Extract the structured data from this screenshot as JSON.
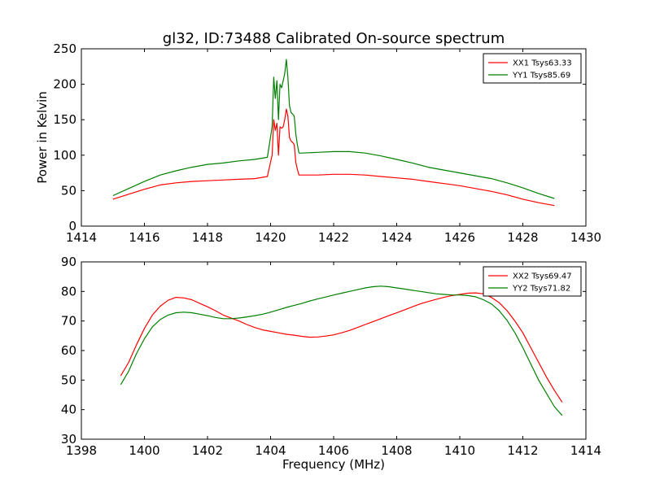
{
  "chart_data": [
    {
      "type": "line",
      "title": "gl32, ID:73488 Calibrated On-source spectrum",
      "xlabel": "",
      "ylabel": "Power in Kelvin",
      "xlim": [
        1414,
        1430
      ],
      "ylim": [
        0,
        250
      ],
      "xticks": [
        1414,
        1416,
        1418,
        1420,
        1422,
        1424,
        1426,
        1428,
        1430
      ],
      "yticks": [
        0,
        50,
        100,
        150,
        200,
        250
      ],
      "legend_position": "top-right",
      "series": [
        {
          "name": "XX1 Tsys63.33",
          "color": "#ff0000",
          "x": [
            1415.0,
            1415.5,
            1416.0,
            1416.5,
            1417.0,
            1417.5,
            1418.0,
            1418.5,
            1419.0,
            1419.5,
            1419.9,
            1420.05,
            1420.1,
            1420.15,
            1420.2,
            1420.25,
            1420.3,
            1420.35,
            1420.4,
            1420.45,
            1420.5,
            1420.55,
            1420.6,
            1420.65,
            1420.7,
            1420.75,
            1420.8,
            1420.85,
            1420.9,
            1421.0,
            1421.5,
            1422.0,
            1422.5,
            1423.0,
            1423.5,
            1424.0,
            1424.5,
            1425.0,
            1425.5,
            1426.0,
            1426.5,
            1427.0,
            1427.5,
            1428.0,
            1428.5,
            1429.0
          ],
          "y": [
            38,
            45,
            52,
            58,
            61,
            63,
            64,
            65,
            66,
            67,
            70,
            100,
            150,
            135,
            145,
            100,
            140,
            138,
            140,
            150,
            165,
            155,
            125,
            120,
            118,
            115,
            90,
            80,
            72,
            72,
            72,
            73,
            73,
            72,
            70,
            68,
            66,
            63,
            60,
            57,
            53,
            49,
            44,
            38,
            33,
            29
          ]
        },
        {
          "name": "YY1 Tsys85.69",
          "color": "#008000",
          "x": [
            1415.0,
            1415.5,
            1416.0,
            1416.5,
            1417.0,
            1417.5,
            1418.0,
            1418.5,
            1419.0,
            1419.5,
            1419.9,
            1420.05,
            1420.1,
            1420.15,
            1420.2,
            1420.25,
            1420.3,
            1420.35,
            1420.4,
            1420.45,
            1420.5,
            1420.55,
            1420.6,
            1420.65,
            1420.7,
            1420.75,
            1420.8,
            1420.85,
            1420.9,
            1421.0,
            1421.5,
            1422.0,
            1422.5,
            1423.0,
            1423.5,
            1424.0,
            1424.5,
            1425.0,
            1425.5,
            1426.0,
            1426.5,
            1427.0,
            1427.5,
            1428.0,
            1428.5,
            1429.0
          ],
          "y": [
            43,
            53,
            63,
            72,
            78,
            83,
            87,
            89,
            92,
            94,
            97,
            140,
            210,
            180,
            205,
            150,
            200,
            195,
            205,
            215,
            235,
            210,
            170,
            160,
            158,
            155,
            130,
            115,
            103,
            103,
            104,
            105,
            105,
            103,
            99,
            94,
            89,
            83,
            79,
            75,
            71,
            67,
            61,
            54,
            46,
            39
          ]
        }
      ]
    },
    {
      "type": "line",
      "title": "",
      "xlabel": "Frequency (MHz)",
      "ylabel": "",
      "xlim": [
        1398,
        1414
      ],
      "ylim": [
        30,
        90
      ],
      "xticks": [
        1398,
        1400,
        1402,
        1404,
        1406,
        1408,
        1410,
        1412,
        1414
      ],
      "yticks": [
        30,
        40,
        50,
        60,
        70,
        80,
        90
      ],
      "legend_position": "top-right",
      "series": [
        {
          "name": "XX2 Tsys69.47",
          "color": "#ff0000",
          "x": [
            1399.25,
            1399.5,
            1399.75,
            1400.0,
            1400.25,
            1400.5,
            1400.75,
            1401.0,
            1401.25,
            1401.5,
            1401.75,
            1402.0,
            1402.25,
            1402.5,
            1402.75,
            1403.0,
            1403.25,
            1403.5,
            1403.75,
            1404.0,
            1404.25,
            1404.5,
            1404.75,
            1405.0,
            1405.25,
            1405.5,
            1405.75,
            1406.0,
            1406.25,
            1406.5,
            1406.75,
            1407.0,
            1407.25,
            1407.5,
            1407.75,
            1408.0,
            1408.25,
            1408.5,
            1408.75,
            1409.0,
            1409.25,
            1409.5,
            1409.75,
            1410.0,
            1410.25,
            1410.5,
            1410.75,
            1411.0,
            1411.25,
            1411.5,
            1411.75,
            1412.0,
            1412.25,
            1412.5,
            1412.75,
            1413.0,
            1413.25
          ],
          "y": [
            51.5,
            56,
            62,
            67.5,
            72,
            75,
            77,
            78,
            77.8,
            77.2,
            76,
            74.8,
            73.5,
            72,
            71,
            70,
            68.8,
            67.8,
            67,
            66.5,
            66,
            65.5,
            65.2,
            64.8,
            64.5,
            64.6,
            64.9,
            65.3,
            66,
            66.8,
            67.8,
            68.8,
            69.8,
            70.8,
            71.8,
            72.8,
            73.8,
            74.8,
            75.8,
            76.6,
            77.3,
            78,
            78.6,
            79,
            79.4,
            79.5,
            79.2,
            78,
            76.2,
            73.5,
            70,
            66,
            61,
            56,
            51,
            46.5,
            42.5
          ]
        },
        {
          "name": "YY2 Tsys71.82",
          "color": "#008000",
          "x": [
            1399.25,
            1399.5,
            1399.75,
            1400.0,
            1400.25,
            1400.5,
            1400.75,
            1401.0,
            1401.25,
            1401.5,
            1401.75,
            1402.0,
            1402.25,
            1402.5,
            1402.75,
            1403.0,
            1403.25,
            1403.5,
            1403.75,
            1404.0,
            1404.25,
            1404.5,
            1404.75,
            1405.0,
            1405.25,
            1405.5,
            1405.75,
            1406.0,
            1406.25,
            1406.5,
            1406.75,
            1407.0,
            1407.25,
            1407.5,
            1407.75,
            1408.0,
            1408.25,
            1408.5,
            1408.75,
            1409.0,
            1409.25,
            1409.5,
            1409.75,
            1410.0,
            1410.25,
            1410.5,
            1410.75,
            1411.0,
            1411.25,
            1411.5,
            1411.75,
            1412.0,
            1412.25,
            1412.5,
            1412.75,
            1413.0,
            1413.25
          ],
          "y": [
            48.5,
            53,
            59,
            64,
            68,
            70.5,
            72,
            72.8,
            73,
            72.8,
            72.3,
            71.8,
            71.2,
            70.8,
            70.8,
            71,
            71.4,
            71.8,
            72.3,
            73,
            73.8,
            74.6,
            75.3,
            76,
            76.8,
            77.5,
            78.1,
            78.8,
            79.4,
            80,
            80.6,
            81.2,
            81.6,
            81.8,
            81.6,
            81.2,
            80.8,
            80.4,
            80,
            79.6,
            79.2,
            79,
            78.8,
            78.8,
            78.6,
            78.2,
            77.2,
            75.8,
            73.5,
            70.2,
            66,
            61,
            55.5,
            50,
            45.5,
            41,
            38
          ]
        }
      ]
    }
  ]
}
